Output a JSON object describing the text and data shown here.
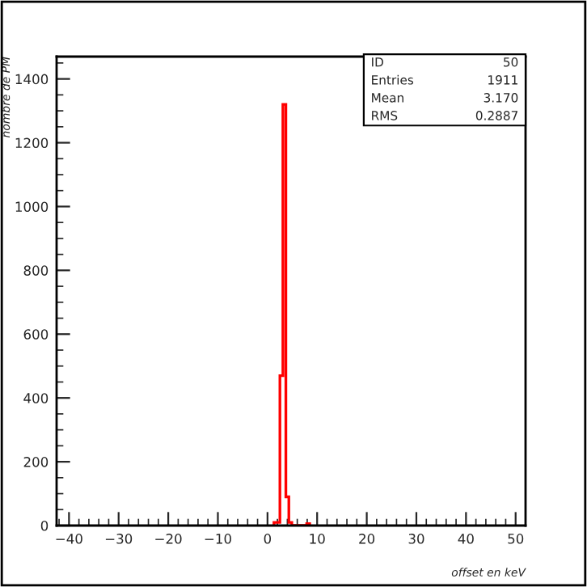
{
  "chart_data": {
    "type": "histogram",
    "xlabel": "offset en keV",
    "ylabel": "nombre de PM",
    "bins": [
      1.3,
      1.9,
      2.5,
      3.1,
      3.7,
      4.3,
      4.9,
      5.5,
      6.1,
      6.7,
      7.3,
      7.9,
      8.5
    ],
    "values": [
      10,
      10,
      470,
      1320,
      90,
      10,
      0,
      0,
      0,
      0,
      0,
      6
    ],
    "color": "#ff0000",
    "xlim": [
      -42.5,
      52
    ],
    "xticks": [
      -40,
      -30,
      -20,
      -10,
      0,
      10,
      20,
      30,
      40,
      50
    ],
    "ylim": [
      0,
      1470
    ],
    "yticks": [
      0,
      200,
      400,
      600,
      800,
      1000,
      1200,
      1400
    ],
    "grid": false,
    "legend": false,
    "annotations": [
      "ID",
      "50",
      "Entries",
      "1911",
      "Mean",
      "3.170",
      "RMS",
      "0.2887"
    ]
  }
}
